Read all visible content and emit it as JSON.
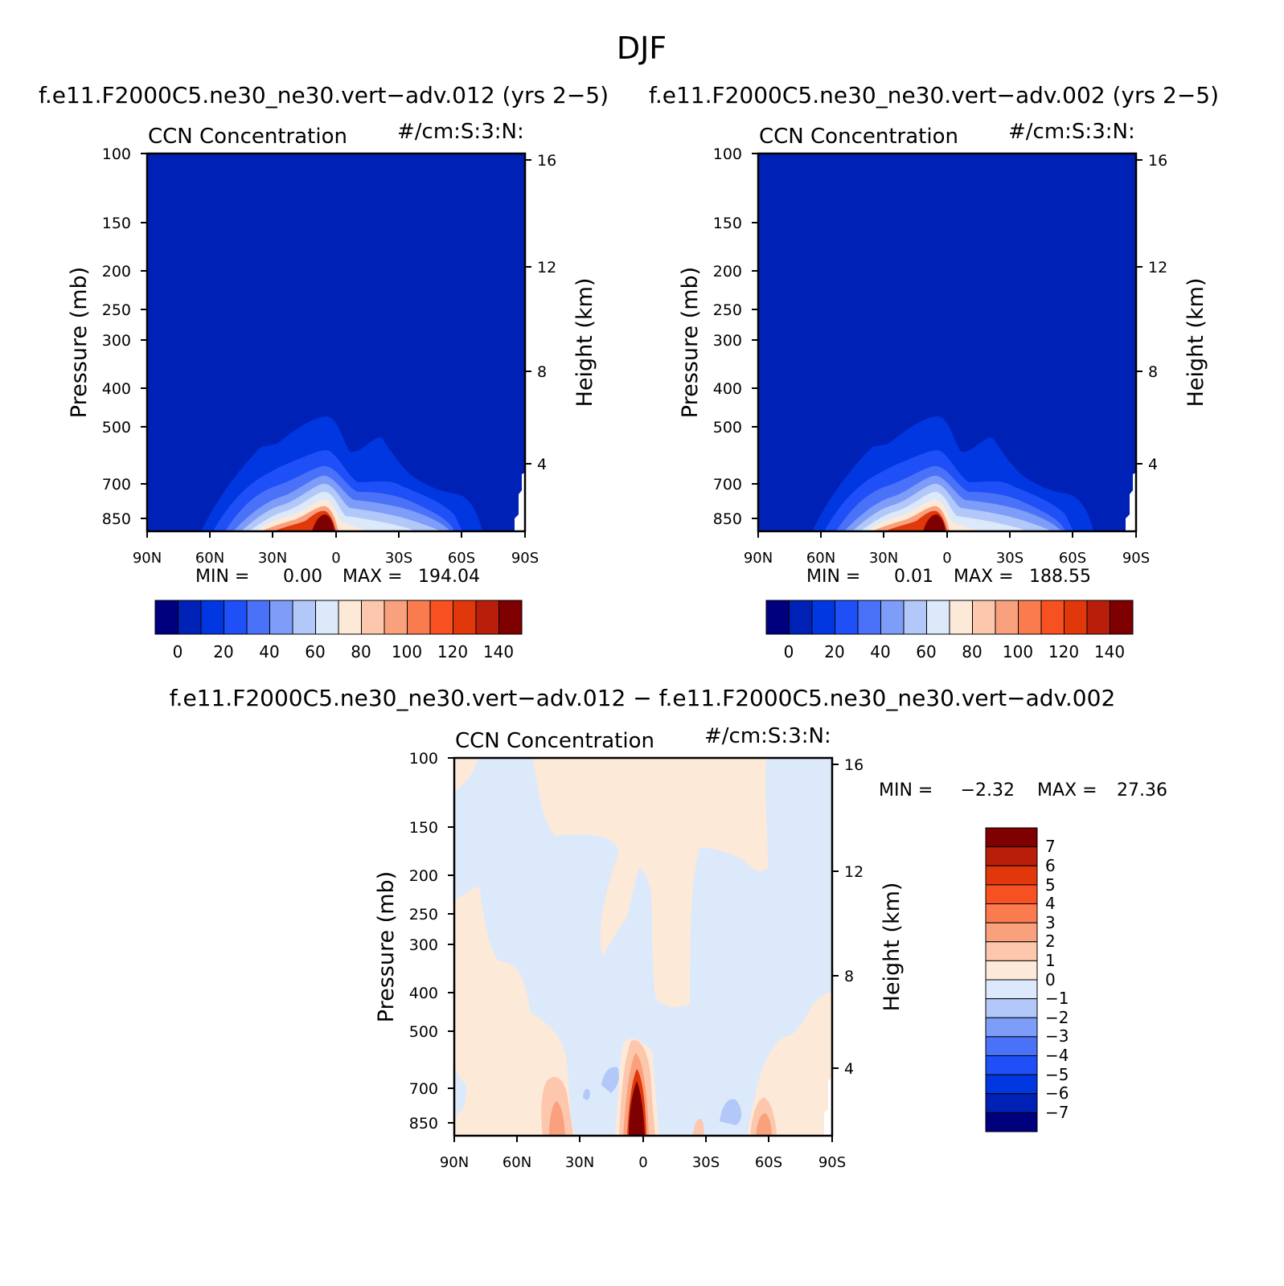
{
  "page_title": "DJF",
  "chart_data": [
    {
      "type": "heatmap",
      "panel": "upper-left",
      "case_title": "f.e11.F2000C5.ne30_ne30.vert−adv.012 (yrs 2−5)",
      "title": "CCN Concentration",
      "units": "#/cm:S:3:N:",
      "ylabel": "Pressure (mb)",
      "ylabel_right": "Height (km)",
      "x_ticks": [
        "90N",
        "60N",
        "30N",
        "0",
        "30S",
        "60S",
        "90S"
      ],
      "y_ticks": [
        "100",
        "150",
        "200",
        "250",
        "300",
        "400",
        "500",
        "700",
        "850"
      ],
      "y_ticks_right": [
        "16",
        "12",
        "8",
        "4"
      ],
      "stats": {
        "min_label": "MIN =",
        "min": "0.00",
        "max_label": "MAX =",
        "max": "194.04"
      },
      "colorbar": {
        "orientation": "horizontal",
        "labels": [
          "0",
          "20",
          "40",
          "60",
          "80",
          "100",
          "120",
          "140"
        ]
      },
      "max_location": {
        "lat": "7N",
        "pressure_mb": "850",
        "value": "194.04"
      }
    },
    {
      "type": "heatmap",
      "panel": "upper-right",
      "case_title": "f.e11.F2000C5.ne30_ne30.vert−adv.002 (yrs 2−5)",
      "title": "CCN Concentration",
      "units": "#/cm:S:3:N:",
      "ylabel": "Pressure (mb)",
      "ylabel_right": "Height (km)",
      "x_ticks": [
        "90N",
        "60N",
        "30N",
        "0",
        "30S",
        "60S",
        "90S"
      ],
      "y_ticks": [
        "100",
        "150",
        "200",
        "250",
        "300",
        "400",
        "500",
        "700",
        "850"
      ],
      "y_ticks_right": [
        "16",
        "12",
        "8",
        "4"
      ],
      "stats": {
        "min_label": "MIN =",
        "min": "0.01",
        "max_label": "MAX =",
        "max": "188.55"
      },
      "colorbar": {
        "orientation": "horizontal",
        "labels": [
          "0",
          "20",
          "40",
          "60",
          "80",
          "100",
          "120",
          "140"
        ]
      },
      "max_location": {
        "lat": "7N",
        "pressure_mb": "850",
        "value": "188.55"
      }
    },
    {
      "type": "heatmap",
      "panel": "difference",
      "case_title": "f.e11.F2000C5.ne30_ne30.vert−adv.012 − f.e11.F2000C5.ne30_ne30.vert−adv.002",
      "title": "CCN Concentration",
      "units": "#/cm:S:3:N:",
      "ylabel": "Pressure (mb)",
      "ylabel_right": "Height (km)",
      "x_ticks": [
        "90N",
        "60N",
        "30N",
        "0",
        "30S",
        "60S",
        "90S"
      ],
      "y_ticks": [
        "100",
        "150",
        "200",
        "250",
        "300",
        "400",
        "500",
        "700",
        "850"
      ],
      "y_ticks_right": [
        "16",
        "12",
        "8",
        "4"
      ],
      "stats": {
        "min_label": "MIN =",
        "min": "−2.32",
        "max_label": "MAX =",
        "max": "27.36"
      },
      "colorbar": {
        "orientation": "vertical",
        "labels": [
          "7",
          "6",
          "5",
          "4",
          "3",
          "2",
          "1",
          "0",
          "−1",
          "−2",
          "−3",
          "−4",
          "−5",
          "−6",
          "−7"
        ]
      }
    }
  ],
  "colors": {
    "seq_levels": [
      "#00007f",
      "#0021b5",
      "#0037e0",
      "#1f4ff7",
      "#4a72f9",
      "#7d9df9",
      "#b2c8f9",
      "#dbe9fb",
      "#fde9d8",
      "#fcc7ad",
      "#f9a07c",
      "#f97b4e",
      "#f75021",
      "#e0380a",
      "#b81e0a",
      "#7f0000"
    ],
    "diff_levels": [
      "#00007f",
      "#0021b5",
      "#0037e0",
      "#1f4ff7",
      "#4a72f9",
      "#7d9df9",
      "#b2c8f9",
      "#dbe9fb",
      "#fde9d8",
      "#fcc7ad",
      "#f9a07c",
      "#f97b4e",
      "#f75021",
      "#e0380a",
      "#b81e0a",
      "#7f0000"
    ]
  }
}
